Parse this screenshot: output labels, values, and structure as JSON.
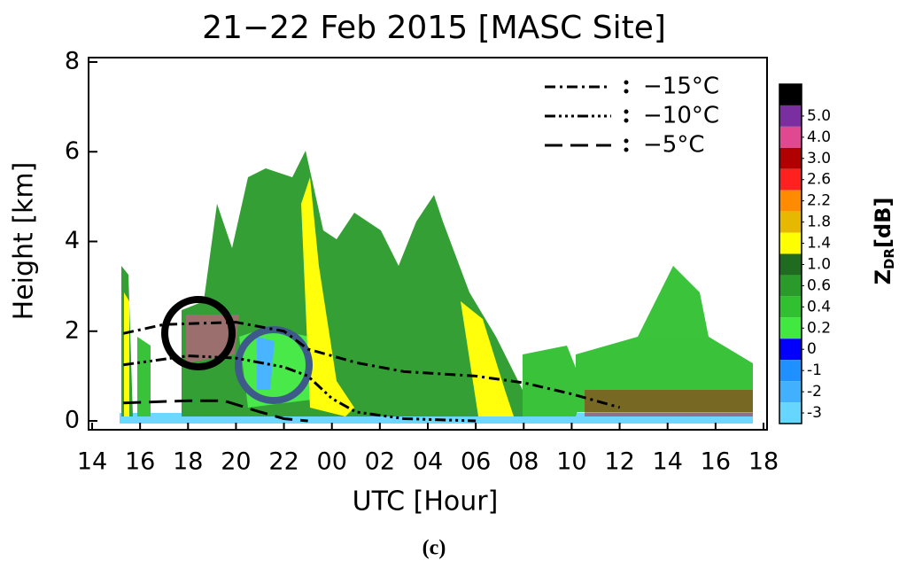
{
  "chart_data": {
    "type": "line",
    "title": "21−22 Feb 2015 [MASC Site]",
    "xlabel": "UTC [Hour]",
    "ylabel": "Height [km]",
    "caption": "(c)",
    "xlim": [
      14,
      42
    ],
    "xticks": [
      14,
      16,
      18,
      20,
      22,
      {
        "value": 24,
        "label": "00"
      },
      {
        "value": 26,
        "label": "02"
      },
      {
        "value": 28,
        "label": "04"
      },
      {
        "value": 30,
        "label": "06"
      },
      {
        "value": 32,
        "label": "08"
      },
      {
        "value": 34,
        "label": "10"
      },
      {
        "value": 36,
        "label": "12"
      },
      {
        "value": 38,
        "label": "14"
      },
      {
        "value": 40,
        "label": "16"
      },
      {
        "value": 42,
        "label": "18"
      }
    ],
    "ylim": [
      0,
      8
    ],
    "yticks": [
      0,
      2,
      4,
      6,
      8
    ],
    "series": [
      {
        "name": "−15°C",
        "color": "#000000",
        "linestyle": "dash-dot",
        "x": [
          15.3,
          17,
          20,
          22,
          23,
          25,
          27,
          30,
          32,
          34,
          36
        ],
        "y": [
          1.95,
          2.15,
          2.2,
          2.0,
          1.6,
          1.3,
          1.1,
          1.0,
          0.85,
          0.6,
          0.3
        ]
      },
      {
        "name": "−10°C",
        "color": "#000000",
        "linestyle": "dash-dot-dot-dot",
        "x": [
          15.3,
          18,
          20,
          22,
          23,
          24,
          25,
          27,
          30
        ],
        "y": [
          1.25,
          1.45,
          1.4,
          1.2,
          1.0,
          0.5,
          0.2,
          0.05,
          0
        ]
      },
      {
        "name": "−5°C",
        "color": "#000000",
        "linestyle": "long-dash",
        "x": [
          15.3,
          18,
          19.5,
          21,
          22,
          23
        ],
        "y": [
          0.4,
          0.45,
          0.45,
          0.2,
          0.05,
          0
        ]
      }
    ],
    "colorbar": {
      "symbol": "Z",
      "subscript": "DR",
      "unit": "[dB]",
      "colors": [
        "#000000",
        "#7a2fa0",
        "#e0488f",
        "#b00000",
        "#ff2020",
        "#ff8c00",
        "#e6b800",
        "#ffff00",
        "#1f6b1f",
        "#2a9a2a",
        "#30c030",
        "#40e840",
        "#0000ff",
        "#1e90ff",
        "#40b0ff",
        "#66d6ff"
      ],
      "ticks": [
        {
          "value": 5,
          "label": "5.0"
        },
        {
          "value": 4,
          "label": "4.0"
        },
        {
          "value": 3,
          "label": "3.0"
        },
        2.6,
        2.2,
        1.8,
        1.4,
        {
          "value": 1,
          "label": "1.0"
        },
        0.6,
        0.4,
        0.2,
        0,
        -1,
        -2,
        -3
      ]
    }
  }
}
